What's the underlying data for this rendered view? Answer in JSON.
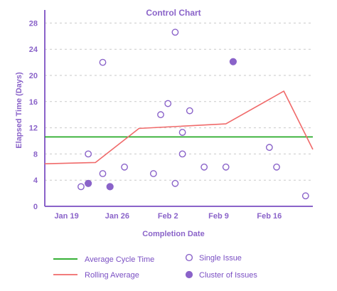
{
  "chart_data": {
    "type": "scatter",
    "title": "Control Chart",
    "xlabel": "Completion Date",
    "ylabel": "Elapsed Time (Days)",
    "ylim": [
      0,
      30
    ],
    "yticks": [
      0,
      4,
      8,
      12,
      16,
      20,
      24,
      28
    ],
    "xlim": [
      "Jan 16",
      "Feb 22"
    ],
    "xticks": [
      {
        "date": "Jan 19",
        "label": "Jan 19"
      },
      {
        "date": "Jan 26",
        "label": "Jan 26"
      },
      {
        "date": "Feb 2",
        "label": "Feb 2"
      },
      {
        "date": "Feb 9",
        "label": "Feb 9"
      },
      {
        "date": "Feb 16",
        "label": "Feb 16"
      }
    ],
    "grid": true,
    "average_cycle_time": 10.6,
    "rolling_average": [
      {
        "date": "Jan 16",
        "y": 6.5
      },
      {
        "date": "Jan 23",
        "y": 6.7
      },
      {
        "date": "Jan 29",
        "y": 11.9
      },
      {
        "date": "Feb 10",
        "y": 12.6
      },
      {
        "date": "Feb 18",
        "y": 17.6
      },
      {
        "date": "Feb 22",
        "y": 8.7
      }
    ],
    "single_issues": [
      {
        "date": "Jan 21",
        "y": 3.0
      },
      {
        "date": "Jan 22",
        "y": 8.0
      },
      {
        "date": "Jan 24",
        "y": 5.0
      },
      {
        "date": "Jan 24",
        "y": 22.0
      },
      {
        "date": "Jan 27",
        "y": 6.0
      },
      {
        "date": "Jan 31",
        "y": 5.0
      },
      {
        "date": "Feb 1",
        "y": 14.0
      },
      {
        "date": "Feb 2",
        "y": 15.7
      },
      {
        "date": "Feb 3",
        "y": 3.5
      },
      {
        "date": "Feb 3",
        "y": 26.6
      },
      {
        "date": "Feb 4",
        "y": 11.3
      },
      {
        "date": "Feb 4",
        "y": 8.0
      },
      {
        "date": "Feb 5",
        "y": 14.6
      },
      {
        "date": "Feb 7",
        "y": 6.0
      },
      {
        "date": "Feb 10",
        "y": 6.0
      },
      {
        "date": "Feb 16",
        "y": 9.0
      },
      {
        "date": "Feb 17",
        "y": 6.0
      },
      {
        "date": "Feb 21",
        "y": 1.6
      }
    ],
    "clusters": [
      {
        "date": "Jan 22",
        "y": 3.5
      },
      {
        "date": "Jan 25",
        "y": 3.0
      },
      {
        "date": "Feb 11",
        "y": 22.1
      }
    ],
    "legend": {
      "position": "bottom",
      "entries": [
        {
          "label": "Average Cycle Time",
          "kind": "line",
          "color": "#1aa51a"
        },
        {
          "label": "Single Issue",
          "kind": "hollow-circle",
          "color": "#8a63c9"
        },
        {
          "label": "Rolling Average",
          "kind": "line",
          "color": "#f06a6a"
        },
        {
          "label": "Cluster of Issues",
          "kind": "filled-circle",
          "color": "#8a63c9"
        }
      ]
    },
    "colors": {
      "axis": "#8a63c9",
      "point": "#8a63c9",
      "average": "#1aa51a",
      "rolling": "#f06a6a",
      "grid": "#c9c9c9"
    }
  }
}
